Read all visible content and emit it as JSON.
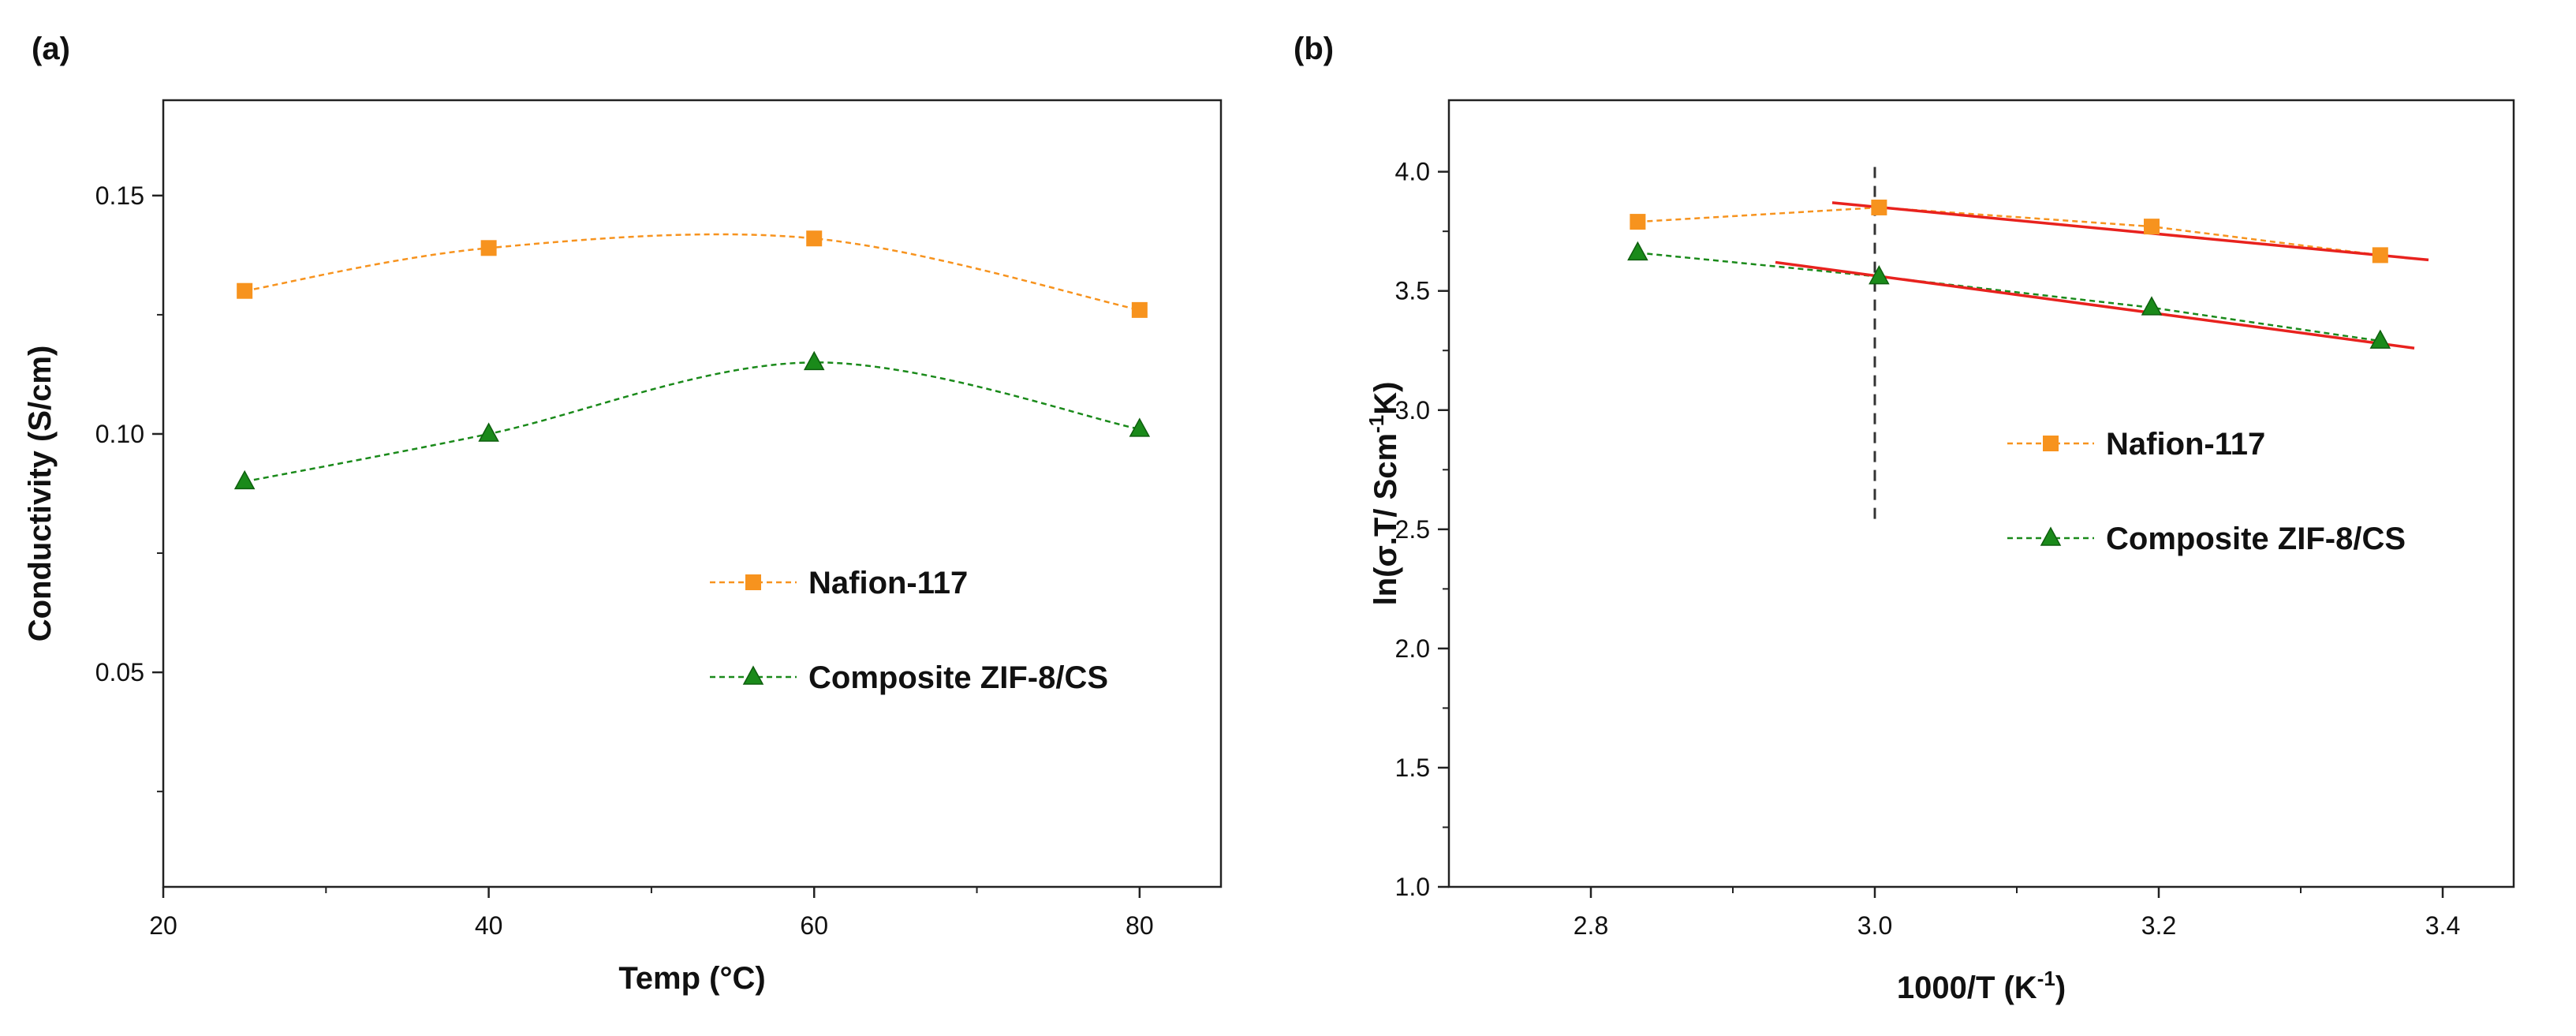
{
  "chart_data": [
    {
      "panel_label": "(a)",
      "type": "line",
      "xlabel": "Temp (°C)",
      "ylabel": "Conductivity (S/cm)",
      "xlim": [
        20,
        85
      ],
      "ylim": [
        0.005,
        0.17
      ],
      "x_ticks": [
        20,
        40,
        60,
        80
      ],
      "x_tick_labels": [
        "20",
        "40",
        "60",
        "80"
      ],
      "x_minor_ticks": [
        30,
        50,
        70
      ],
      "y_ticks": [
        0.05,
        0.1,
        0.15
      ],
      "y_tick_labels": [
        "0.05",
        "0.10",
        "0.15"
      ],
      "y_minor_ticks": [
        0.025,
        0.075,
        0.125
      ],
      "legend_position": "center-right",
      "series": [
        {
          "name": "Nafion-117",
          "color": "#F7931E",
          "marker": "square",
          "line": "dashed",
          "x": [
            25,
            40,
            60,
            80
          ],
          "y": [
            0.13,
            0.139,
            0.141,
            0.126
          ]
        },
        {
          "name": "Composite ZIF-8/CS",
          "color": "#1A8A1A",
          "marker": "triangle",
          "line": "dashed",
          "x": [
            25,
            40,
            60,
            80
          ],
          "y": [
            0.09,
            0.1,
            0.115,
            0.101
          ]
        }
      ]
    },
    {
      "panel_label": "(b)",
      "type": "line",
      "xlabel_main": "1000/T (K",
      "xlabel_sup": "-1",
      "xlabel_tail": ")",
      "ylabel_main": "ln(σ.T/ Scm",
      "ylabel_sup": "-1",
      "ylabel_tail": "K)",
      "xlim": [
        2.7,
        3.45
      ],
      "ylim": [
        1.0,
        4.3
      ],
      "x_ticks": [
        2.8,
        3.0,
        3.2,
        3.4
      ],
      "x_tick_labels": [
        "2.8",
        "3.0",
        "3.2",
        "3.4"
      ],
      "x_minor_ticks": [
        2.9,
        3.1,
        3.3
      ],
      "y_ticks": [
        1.0,
        1.5,
        2.0,
        2.5,
        3.0,
        3.5,
        4.0
      ],
      "y_tick_labels": [
        "1.0",
        "1.5",
        "2.0",
        "2.5",
        "3.0",
        "3.5",
        "4.0"
      ],
      "y_minor_ticks": [
        1.25,
        1.75,
        2.25,
        2.75,
        3.25,
        3.75
      ],
      "legend_position": "center-right",
      "series": [
        {
          "name": "Nafion-117",
          "color": "#F7931E",
          "marker": "square",
          "line": "dashed",
          "x": [
            2.833,
            3.003,
            3.195,
            3.356
          ],
          "y": [
            3.79,
            3.85,
            3.77,
            3.65
          ]
        },
        {
          "name": "Composite ZIF-8/CS",
          "color": "#1A8A1A",
          "marker": "triangle",
          "line": "dashed",
          "x": [
            2.833,
            3.003,
            3.195,
            3.356
          ],
          "y": [
            3.66,
            3.56,
            3.43,
            3.29
          ]
        }
      ],
      "fit_lines": [
        {
          "color": "#E8221E",
          "x": [
            2.97,
            3.39
          ],
          "y": [
            3.87,
            3.63
          ]
        },
        {
          "color": "#E8221E",
          "x": [
            2.93,
            3.38
          ],
          "y": [
            3.62,
            3.26
          ]
        }
      ],
      "vertical_dashed_line": {
        "x": 3.0,
        "y": [
          2.52,
          4.02
        ],
        "color": "#333333"
      }
    }
  ]
}
